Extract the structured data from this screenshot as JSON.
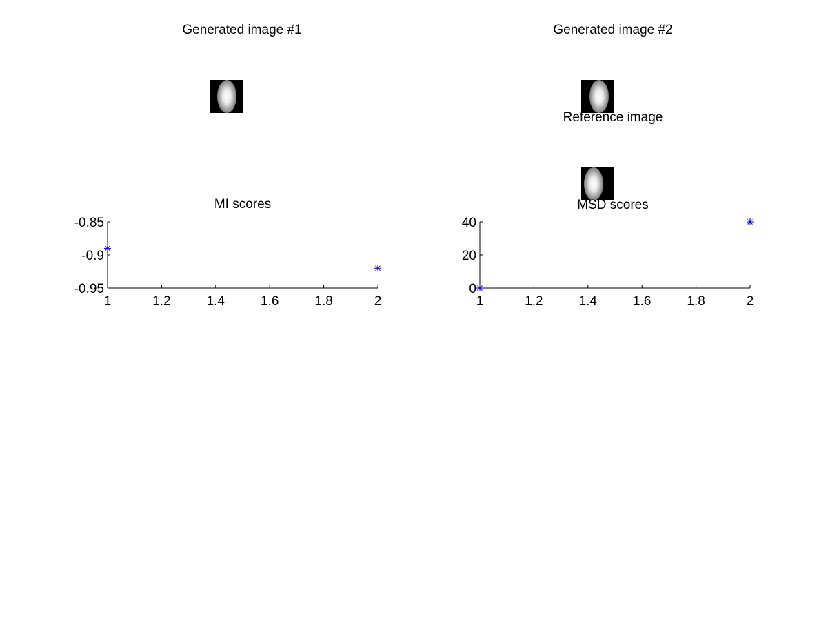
{
  "images": [
    {
      "title": "Generated image #1"
    },
    {
      "title": "Generated image #2"
    },
    {
      "title": "Reference image"
    }
  ],
  "marker_color": "#0000ff",
  "chart_data": [
    {
      "type": "scatter",
      "title": "MI scores",
      "xlabel": "",
      "ylabel": "",
      "x": [
        1,
        2
      ],
      "y": [
        -0.89,
        -0.92
      ],
      "xlim": [
        1,
        2
      ],
      "ylim": [
        -0.95,
        -0.85
      ],
      "xticks": [
        "1",
        "1.2",
        "1.4",
        "1.6",
        "1.8",
        "2"
      ],
      "xtick_values": [
        1,
        1.2,
        1.4,
        1.6,
        1.8,
        2
      ],
      "yticks": [
        "-0.85",
        "-0.9",
        "-0.95"
      ],
      "ytick_values": [
        -0.85,
        -0.9,
        -0.95
      ],
      "marker": "*",
      "grid": false
    },
    {
      "type": "scatter",
      "title": "MSD scores",
      "xlabel": "",
      "ylabel": "",
      "x": [
        1,
        2
      ],
      "y": [
        0,
        40
      ],
      "xlim": [
        1,
        2
      ],
      "ylim": [
        0,
        40
      ],
      "xticks": [
        "1",
        "1.2",
        "1.4",
        "1.6",
        "1.8",
        "2"
      ],
      "xtick_values": [
        1,
        1.2,
        1.4,
        1.6,
        1.8,
        2
      ],
      "yticks": [
        "40",
        "20",
        "0"
      ],
      "ytick_values": [
        40,
        20,
        0
      ],
      "marker": "*",
      "grid": false
    }
  ]
}
